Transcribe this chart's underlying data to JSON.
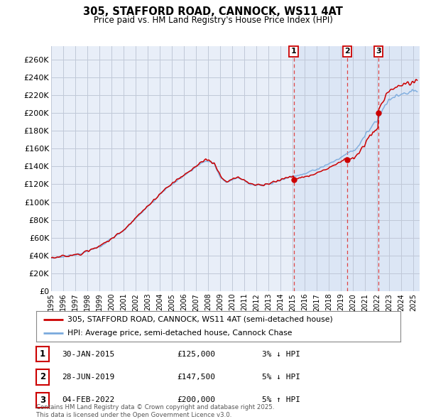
{
  "title": "305, STAFFORD ROAD, CANNOCK, WS11 4AT",
  "subtitle": "Price paid vs. HM Land Registry's House Price Index (HPI)",
  "ylabel_ticks": [
    "£0",
    "£20K",
    "£40K",
    "£60K",
    "£80K",
    "£100K",
    "£120K",
    "£140K",
    "£160K",
    "£180K",
    "£200K",
    "£220K",
    "£240K",
    "£260K"
  ],
  "ytick_values": [
    0,
    20000,
    40000,
    60000,
    80000,
    100000,
    120000,
    140000,
    160000,
    180000,
    200000,
    220000,
    240000,
    260000
  ],
  "ylim": [
    0,
    275000
  ],
  "xlim_start": 1995.0,
  "xlim_end": 2025.5,
  "legend_entries": [
    "305, STAFFORD ROAD, CANNOCK, WS11 4AT (semi-detached house)",
    "HPI: Average price, semi-detached house, Cannock Chase"
  ],
  "transactions": [
    {
      "num": 1,
      "date_label": "30-JAN-2015",
      "date_x": 2015.08,
      "price": 125000,
      "pct": "3%",
      "dir": "↓",
      "marker_y": 125000
    },
    {
      "num": 2,
      "date_label": "28-JUN-2019",
      "date_x": 2019.5,
      "price": 147500,
      "pct": "5%",
      "dir": "↓",
      "marker_y": 147500
    },
    {
      "num": 3,
      "date_label": "04-FEB-2022",
      "date_x": 2022.09,
      "price": 200000,
      "pct": "5%",
      "dir": "↑",
      "marker_y": 200000
    }
  ],
  "footer": "Contains HM Land Registry data © Crown copyright and database right 2025.\nThis data is licensed under the Open Government Licence v3.0.",
  "bg_color": "#ffffff",
  "chart_bg_color": "#e8eef8",
  "chart_highlight_color": "#dce6f5",
  "grid_color": "#c0c8d8",
  "hpi_line_color": "#7aaadd",
  "price_line_color": "#cc0000",
  "vline_color": "#dd4444",
  "shade_start": 2015.08
}
